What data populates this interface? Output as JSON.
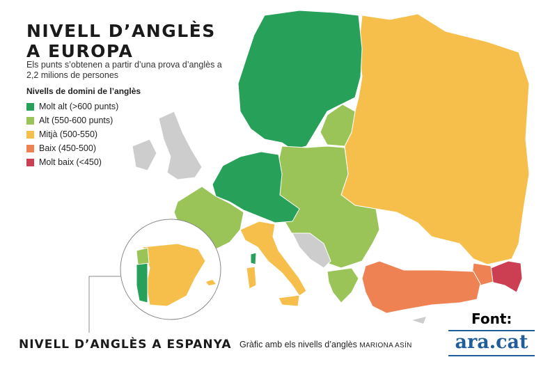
{
  "title": {
    "line1": "NIVELL D’ANGLÈS",
    "line2": "A EUROPA"
  },
  "subtitle": "Els punts s’obtenen a partir d’una prova d’anglès a 2,2 milions de persones",
  "legend": {
    "title": "Nivells de domini de l’anglès",
    "items": [
      {
        "label": "Molt alt (>600 punts)",
        "color": "#27a05a"
      },
      {
        "label": "Alt (550-600 punts)",
        "color": "#9ac458"
      },
      {
        "label": "Mitjà (500-550)",
        "color": "#f6bf4b"
      },
      {
        "label": "Baix (450-500)",
        "color": "#ee8253"
      },
      {
        "label": "Molt baix (<450)",
        "color": "#cc3f53"
      }
    ]
  },
  "no_data_color": "#cdcdcd",
  "inset_title": "NIVELL D’ANGLÈS A ESPANYA",
  "caption": {
    "text": "Gràfic amb els nivells d’anglès",
    "author": "MARIONA ASÍN"
  },
  "source": {
    "label": "Font:",
    "brand": "ara.cat",
    "brand_color": "#1f5e9a"
  }
}
